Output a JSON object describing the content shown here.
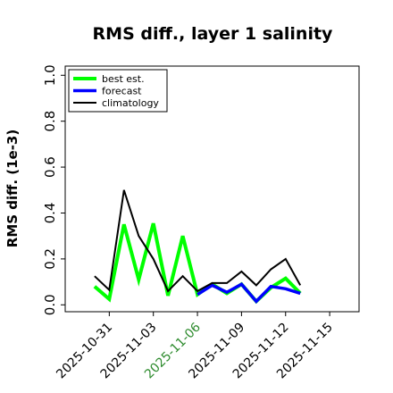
{
  "chart_data": {
    "type": "line",
    "title": "RMS diff., layer 1 salinity",
    "xlabel": "",
    "ylabel": "RMS diff. (1e-3)",
    "x_axis_type": "date",
    "xlim": [
      "2025-10-28",
      "2025-11-17"
    ],
    "ylim": [
      -0.03,
      1.04
    ],
    "yticks": [
      0.0,
      0.2,
      0.4,
      0.6,
      0.8,
      1.0
    ],
    "ytick_labels": [
      "0.0",
      "0.2",
      "0.4",
      "0.6",
      "0.8",
      "1.0"
    ],
    "xticks": [
      "2025-10-31",
      "2025-11-03",
      "2025-11-06",
      "2025-11-09",
      "2025-11-12",
      "2025-11-15"
    ],
    "xtick_labels": [
      "2025-10-31",
      "2025-11-03",
      "2025-11-06",
      "2025-11-09",
      "2025-11-12",
      "2025-11-15"
    ],
    "highlight_xtick": "2025-11-06",
    "highlight_color": "#2e8b2e",
    "grid": false,
    "legend_position": "top-left",
    "series": [
      {
        "name": "best est.",
        "color": "#00ff00",
        "x": [
          "2025-10-30",
          "2025-10-31",
          "2025-11-01",
          "2025-11-02",
          "2025-11-03",
          "2025-11-04",
          "2025-11-05",
          "2025-11-06",
          "2025-11-07",
          "2025-11-08",
          "2025-11-09",
          "2025-11-10",
          "2025-11-11",
          "2025-11-12",
          "2025-11-13"
        ],
        "values": [
          0.08,
          0.025,
          0.35,
          0.11,
          0.355,
          0.04,
          0.3,
          0.045,
          0.09,
          0.05,
          0.09,
          0.015,
          0.075,
          0.115,
          0.05
        ]
      },
      {
        "name": "forecast",
        "color": "#0000ff",
        "x": [
          "2025-11-06",
          "2025-11-07",
          "2025-11-08",
          "2025-11-09",
          "2025-11-10",
          "2025-11-11",
          "2025-11-12",
          "2025-11-13"
        ],
        "values": [
          0.045,
          0.085,
          0.055,
          0.09,
          0.015,
          0.08,
          0.07,
          0.05
        ]
      },
      {
        "name": "climatology",
        "color": "#000000",
        "x": [
          "2025-10-30",
          "2025-10-31",
          "2025-11-01",
          "2025-11-02",
          "2025-11-03",
          "2025-11-04",
          "2025-11-05",
          "2025-11-06",
          "2025-11-07",
          "2025-11-08",
          "2025-11-09",
          "2025-11-10",
          "2025-11-11",
          "2025-11-12",
          "2025-11-13"
        ],
        "values": [
          0.125,
          0.065,
          0.5,
          0.3,
          0.2,
          0.06,
          0.125,
          0.06,
          0.095,
          0.095,
          0.145,
          0.085,
          0.155,
          0.2,
          0.085
        ]
      }
    ]
  }
}
